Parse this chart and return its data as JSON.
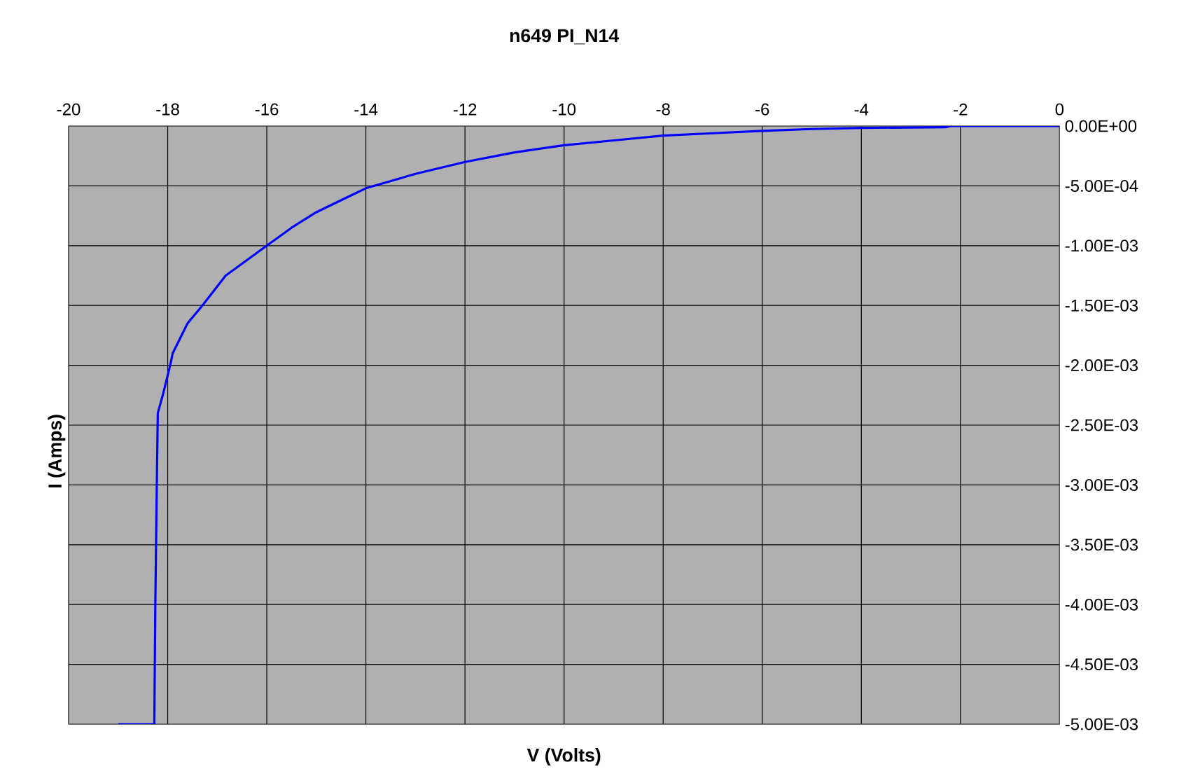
{
  "chart_data": {
    "type": "line",
    "title": "n649 PI_N14",
    "xlabel": "V (Volts)",
    "ylabel": "I (Amps)",
    "x": [
      -19.0,
      -18.27,
      -18.25,
      -18.22,
      -18.2,
      -18.1,
      -17.95,
      -17.9,
      -17.6,
      -17.3,
      -16.83,
      -16.0,
      -15.5,
      -15.0,
      -14.0,
      -13.0,
      -12.0,
      -11.0,
      -10.0,
      -9.0,
      -8.0,
      -7.0,
      -6.0,
      -5.0,
      -4.0,
      -2.3,
      -2.2,
      0.0
    ],
    "series": [
      {
        "color": "#0000ff",
        "values": [
          -0.005,
          -0.005,
          -0.004,
          -0.003,
          -0.0024,
          -0.00225,
          -0.002,
          -0.0019,
          -0.00165,
          -0.0015,
          -0.00125,
          -0.001,
          -0.00085,
          -0.00072,
          -0.00052,
          -0.0004,
          -0.0003,
          -0.00022,
          -0.00016,
          -0.00012,
          -8e-05,
          -6e-05,
          -4e-05,
          -2.5e-05,
          -1.5e-05,
          -1e-05,
          0.0,
          0.0
        ]
      }
    ],
    "xlim": [
      -20,
      0
    ],
    "xticks": [
      -20,
      -18,
      -16,
      -14,
      -12,
      -10,
      -8,
      -6,
      -4,
      -2,
      0
    ],
    "ylim": [
      -0.005,
      0
    ],
    "yticks": [
      {
        "value": 0,
        "label": "0.00E+00"
      },
      {
        "value": -0.0005,
        "label": "-5.00E-04"
      },
      {
        "value": -0.001,
        "label": "-1.00E-03"
      },
      {
        "value": -0.0015,
        "label": "-1.50E-03"
      },
      {
        "value": -0.002,
        "label": "-2.00E-03"
      },
      {
        "value": -0.0025,
        "label": "-2.50E-03"
      },
      {
        "value": -0.003,
        "label": "-3.00E-03"
      },
      {
        "value": -0.0035,
        "label": "-3.50E-03"
      },
      {
        "value": -0.004,
        "label": "-4.00E-03"
      },
      {
        "value": -0.0045,
        "label": "-4.50E-03"
      },
      {
        "value": -0.005,
        "label": "-5.00E-03"
      }
    ],
    "grid": true
  }
}
